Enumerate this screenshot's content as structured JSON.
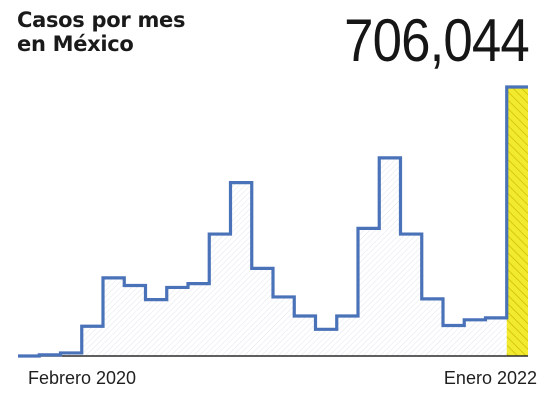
{
  "title": {
    "line1": "Casos por mes",
    "line2": "en México"
  },
  "highlight_value": "706,044",
  "colors": {
    "line": "#4a72b8",
    "highlight_fill": "#f2ea2e",
    "highlight_stroke": "#c9b800",
    "axis": "#2b2b2b",
    "area_hatch": "#d9dde5"
  },
  "chart_data": {
    "type": "line",
    "step": true,
    "title": "Casos por mes en México",
    "x_start_label": "Febrero 2020",
    "x_end_label": "Enero 2022",
    "xlabel": "",
    "ylabel": "",
    "ylim": [
      0,
      706044
    ],
    "x": [
      "2020-02",
      "2020-03",
      "2020-04",
      "2020-05",
      "2020-06",
      "2020-07",
      "2020-08",
      "2020-09",
      "2020-10",
      "2020-11",
      "2020-12",
      "2021-01",
      "2021-02",
      "2021-03",
      "2021-04",
      "2021-05",
      "2021-06",
      "2021-07",
      "2021-08",
      "2021-09",
      "2021-10",
      "2021-11",
      "2021-12",
      "2022-01"
    ],
    "series": [
      {
        "values": [
          0,
          3000,
          8000,
          78000,
          205000,
          185000,
          148000,
          180000,
          190000,
          320000,
          455000,
          230000,
          155000,
          105000,
          70000,
          105000,
          335000,
          520000,
          320000,
          150000,
          80000,
          95000,
          100000,
          706044
        ],
        "highlight_last": true
      }
    ],
    "grid": false,
    "legend": "none"
  }
}
